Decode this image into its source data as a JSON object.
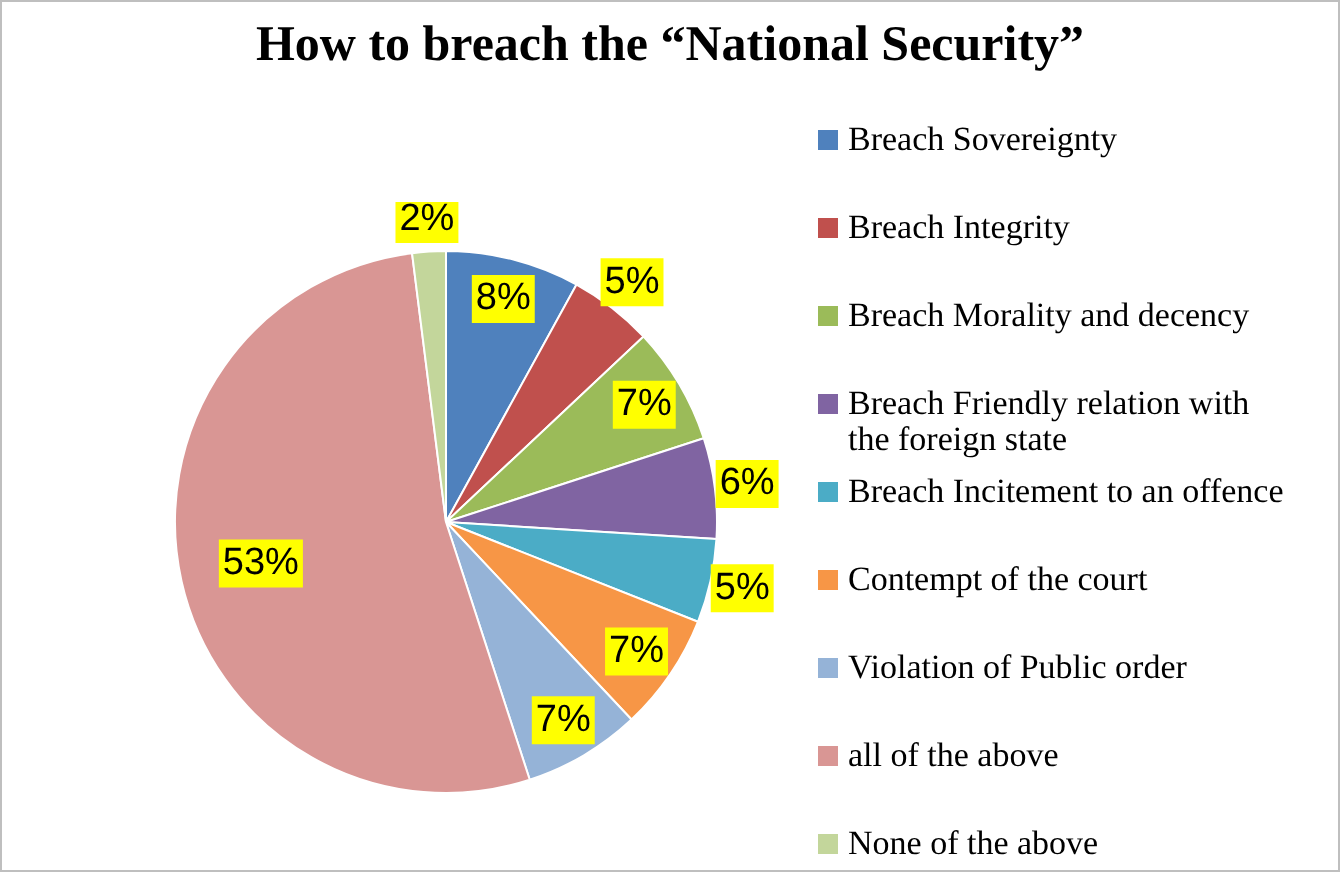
{
  "chart_data": {
    "type": "pie",
    "title": "How to breach the “National Security”",
    "categories": [
      "Breach Sovereignty",
      "Breach Integrity",
      "Breach Morality and decency",
      "Breach Friendly relation with the foreign state",
      "Breach Incitement to an offence",
      "Contempt of the court",
      "Violation of Public order",
      "all of the above",
      "None of the above"
    ],
    "values": [
      8,
      5,
      7,
      6,
      5,
      7,
      7,
      53,
      2
    ],
    "value_labels": [
      "8%",
      "5%",
      "7%",
      "6%",
      "5%",
      "7%",
      "7%",
      "53%",
      "2%"
    ],
    "colors": [
      "#4f81bd",
      "#c0504d",
      "#9bbb59",
      "#8064a2",
      "#4bacc6",
      "#f79646",
      "#95b3d7",
      "#d99694",
      "#c3d69b"
    ],
    "legend": "right"
  }
}
